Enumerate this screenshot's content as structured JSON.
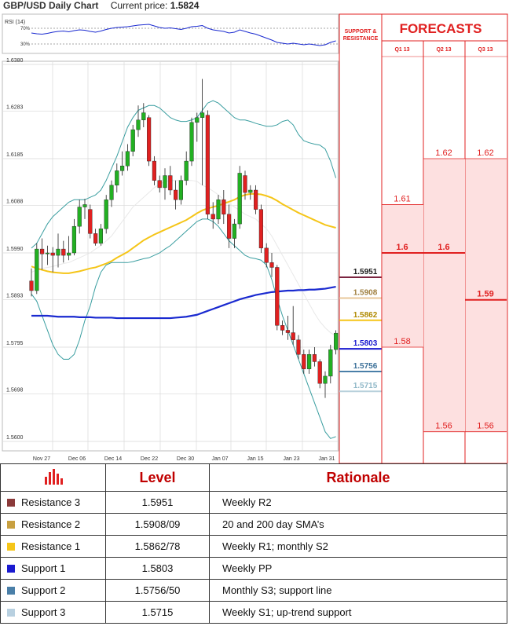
{
  "header": {
    "title": "GBP/USD Daily Chart",
    "price_label": "Current price:",
    "price_value": "1.5824"
  },
  "colors": {
    "red": "#e02020",
    "axis": "#888888"
  },
  "rsi": {
    "label": "RSI (14)",
    "level_high": "70%",
    "level_low": "30%"
  },
  "chart_data": {
    "type": "candlestick",
    "x_ticks": [
      "Nov 27",
      "Dec 06",
      "Dec 14",
      "Dec 22",
      "Dec 30",
      "Jan 07",
      "Jan 15",
      "Jan 23",
      "Jan 31"
    ],
    "y_ticks": [
      "1.6380",
      "1.6283",
      "1.6185",
      "1.6088",
      "1.5990",
      "1.5893",
      "1.5795",
      "1.5698",
      "1.5600"
    ],
    "ylim": [
      1.56,
      1.638
    ],
    "candles": [
      {
        "o": 1.5932,
        "h": 1.5958,
        "l": 1.59,
        "c": 1.5912
      },
      {
        "o": 1.5912,
        "h": 1.601,
        "l": 1.5905,
        "c": 1.5998
      },
      {
        "o": 1.5998,
        "h": 1.602,
        "l": 1.5955,
        "c": 1.5988
      },
      {
        "o": 1.5988,
        "h": 1.6005,
        "l": 1.5965,
        "c": 1.599
      },
      {
        "o": 1.599,
        "h": 1.6002,
        "l": 1.595,
        "c": 1.5985
      },
      {
        "o": 1.5985,
        "h": 1.603,
        "l": 1.596,
        "c": 1.5998
      },
      {
        "o": 1.5998,
        "h": 1.6015,
        "l": 1.597,
        "c": 1.5985
      },
      {
        "o": 1.5985,
        "h": 1.6025,
        "l": 1.5975,
        "c": 1.599
      },
      {
        "o": 1.599,
        "h": 1.606,
        "l": 1.5985,
        "c": 1.6045
      },
      {
        "o": 1.6045,
        "h": 1.61,
        "l": 1.603,
        "c": 1.6085
      },
      {
        "o": 1.6085,
        "h": 1.6102,
        "l": 1.606,
        "c": 1.609
      },
      {
        "o": 1.608,
        "h": 1.609,
        "l": 1.602,
        "c": 1.603
      },
      {
        "o": 1.603,
        "h": 1.604,
        "l": 1.6005,
        "c": 1.601
      },
      {
        "o": 1.601,
        "h": 1.605,
        "l": 1.6005,
        "c": 1.604
      },
      {
        "o": 1.604,
        "h": 1.611,
        "l": 1.603,
        "c": 1.61
      },
      {
        "o": 1.61,
        "h": 1.614,
        "l": 1.6085,
        "c": 1.613
      },
      {
        "o": 1.613,
        "h": 1.6175,
        "l": 1.6115,
        "c": 1.616
      },
      {
        "o": 1.616,
        "h": 1.62,
        "l": 1.615,
        "c": 1.617
      },
      {
        "o": 1.617,
        "h": 1.6215,
        "l": 1.616,
        "c": 1.62
      },
      {
        "o": 1.62,
        "h": 1.6255,
        "l": 1.619,
        "c": 1.6245
      },
      {
        "o": 1.6245,
        "h": 1.6295,
        "l": 1.623,
        "c": 1.6265
      },
      {
        "o": 1.6265,
        "h": 1.63,
        "l": 1.625,
        "c": 1.628
      },
      {
        "o": 1.627,
        "h": 1.6275,
        "l": 1.617,
        "c": 1.618
      },
      {
        "o": 1.618,
        "h": 1.619,
        "l": 1.613,
        "c": 1.614
      },
      {
        "o": 1.614,
        "h": 1.615,
        "l": 1.6115,
        "c": 1.6125
      },
      {
        "o": 1.6125,
        "h": 1.6165,
        "l": 1.61,
        "c": 1.615
      },
      {
        "o": 1.615,
        "h": 1.617,
        "l": 1.611,
        "c": 1.612
      },
      {
        "o": 1.612,
        "h": 1.614,
        "l": 1.608,
        "c": 1.61
      },
      {
        "o": 1.61,
        "h": 1.615,
        "l": 1.609,
        "c": 1.614
      },
      {
        "o": 1.614,
        "h": 1.62,
        "l": 1.613,
        "c": 1.618
      },
      {
        "o": 1.618,
        "h": 1.627,
        "l": 1.617,
        "c": 1.626
      },
      {
        "o": 1.626,
        "h": 1.628,
        "l": 1.622,
        "c": 1.627
      },
      {
        "o": 1.627,
        "h": 1.635,
        "l": 1.613,
        "c": 1.628
      },
      {
        "o": 1.6275,
        "h": 1.6285,
        "l": 1.606,
        "c": 1.607
      },
      {
        "o": 1.607,
        "h": 1.6095,
        "l": 1.604,
        "c": 1.606
      },
      {
        "o": 1.606,
        "h": 1.611,
        "l": 1.605,
        "c": 1.61
      },
      {
        "o": 1.61,
        "h": 1.612,
        "l": 1.605,
        "c": 1.607
      },
      {
        "o": 1.607,
        "h": 1.609,
        "l": 1.6,
        "c": 1.602
      },
      {
        "o": 1.602,
        "h": 1.606,
        "l": 1.6,
        "c": 1.605
      },
      {
        "o": 1.605,
        "h": 1.617,
        "l": 1.604,
        "c": 1.6155
      },
      {
        "o": 1.615,
        "h": 1.616,
        "l": 1.61,
        "c": 1.6115
      },
      {
        "o": 1.6115,
        "h": 1.613,
        "l": 1.61,
        "c": 1.612
      },
      {
        "o": 1.612,
        "h": 1.613,
        "l": 1.607,
        "c": 1.608
      },
      {
        "o": 1.608,
        "h": 1.609,
        "l": 1.599,
        "c": 1.6
      },
      {
        "o": 1.6,
        "h": 1.601,
        "l": 1.596,
        "c": 1.597
      },
      {
        "o": 1.597,
        "h": 1.599,
        "l": 1.594,
        "c": 1.596
      },
      {
        "o": 1.596,
        "h": 1.5965,
        "l": 1.583,
        "c": 1.584
      },
      {
        "o": 1.584,
        "h": 1.585,
        "l": 1.582,
        "c": 1.583
      },
      {
        "o": 1.583,
        "h": 1.586,
        "l": 1.581,
        "c": 1.5825
      },
      {
        "o": 1.5825,
        "h": 1.588,
        "l": 1.58,
        "c": 1.581
      },
      {
        "o": 1.581,
        "h": 1.582,
        "l": 1.577,
        "c": 1.578
      },
      {
        "o": 1.578,
        "h": 1.579,
        "l": 1.574,
        "c": 1.575
      },
      {
        "o": 1.575,
        "h": 1.579,
        "l": 1.574,
        "c": 1.578
      },
      {
        "o": 1.578,
        "h": 1.5795,
        "l": 1.5755,
        "c": 1.5765
      },
      {
        "o": 1.5765,
        "h": 1.577,
        "l": 1.571,
        "c": 1.572
      },
      {
        "o": 1.572,
        "h": 1.5745,
        "l": 1.569,
        "c": 1.5735
      },
      {
        "o": 1.5735,
        "h": 1.58,
        "l": 1.572,
        "c": 1.579
      },
      {
        "o": 1.579,
        "h": 1.583,
        "l": 1.578,
        "c": 1.5824
      }
    ],
    "sma20": [
      1.5962,
      1.5958,
      1.5955,
      1.5952,
      1.595,
      1.5949,
      1.5948,
      1.5948,
      1.595,
      1.5952,
      1.5955,
      1.5958,
      1.596,
      1.5964,
      1.5968,
      1.5973,
      1.598,
      1.5986,
      1.5992,
      1.6,
      1.6008,
      1.6016,
      1.6022,
      1.6028,
      1.6033,
      1.6038,
      1.6043,
      1.6048,
      1.6053,
      1.6058,
      1.6065,
      1.6072,
      1.6078,
      1.6082,
      1.6085,
      1.6088,
      1.6092,
      1.6096,
      1.61,
      1.6106,
      1.611,
      1.6112,
      1.6112,
      1.6111,
      1.6108,
      1.6104,
      1.6098,
      1.6091,
      1.6085,
      1.6079,
      1.6073,
      1.6068,
      1.6063,
      1.6058,
      1.6053,
      1.6048,
      1.6045,
      1.6042
    ],
    "sma200": [
      1.586,
      1.586,
      1.586,
      1.586,
      1.5859,
      1.5858,
      1.5858,
      1.5858,
      1.5858,
      1.5857,
      1.5857,
      1.5857,
      1.5856,
      1.5856,
      1.5856,
      1.5856,
      1.5855,
      1.5855,
      1.5855,
      1.5855,
      1.5855,
      1.5855,
      1.5855,
      1.5855,
      1.5855,
      1.5855,
      1.5855,
      1.5856,
      1.5857,
      1.5858,
      1.586,
      1.5862,
      1.5866,
      1.587,
      1.5874,
      1.5878,
      1.5882,
      1.5886,
      1.589,
      1.5894,
      1.5897,
      1.59,
      1.5903,
      1.5905,
      1.5907,
      1.5909,
      1.591,
      1.5911,
      1.5912,
      1.5912,
      1.5913,
      1.5913,
      1.5914,
      1.5914,
      1.5915,
      1.5916,
      1.5918,
      1.592
    ],
    "bb_upper": [
      1.6,
      1.601,
      1.603,
      1.605,
      1.6065,
      1.6075,
      1.6085,
      1.6095,
      1.61,
      1.61,
      1.61,
      1.6105,
      1.611,
      1.612,
      1.614,
      1.6165,
      1.619,
      1.622,
      1.625,
      1.627,
      1.6285,
      1.629,
      1.6295,
      1.6295,
      1.629,
      1.628,
      1.627,
      1.6265,
      1.6262,
      1.6262,
      1.6265,
      1.627,
      1.6285,
      1.63,
      1.6305,
      1.63,
      1.629,
      1.628,
      1.627,
      1.6265,
      1.6265,
      1.6262,
      1.6258,
      1.6255,
      1.6252,
      1.6252,
      1.6255,
      1.6262,
      1.6265,
      1.6255,
      1.6235,
      1.6222,
      1.6218,
      1.6215,
      1.6213,
      1.6205,
      1.618,
      1.6145
    ],
    "bb_lower": [
      1.5905,
      1.589,
      1.586,
      1.583,
      1.58,
      1.578,
      1.577,
      1.577,
      1.578,
      1.581,
      1.585,
      1.588,
      1.592,
      1.595,
      1.5965,
      1.597,
      1.597,
      1.597,
      1.597,
      1.5972,
      1.5975,
      1.5978,
      1.598,
      1.5985,
      1.599,
      1.5998,
      1.6005,
      1.6015,
      1.6025,
      1.6035,
      1.6045,
      1.6055,
      1.606,
      1.606,
      1.6055,
      1.6045,
      1.603,
      1.6015,
      1.6005,
      1.5995,
      1.5985,
      1.598,
      1.5978,
      1.5975,
      1.5965,
      1.5935,
      1.5895,
      1.586,
      1.583,
      1.58,
      1.577,
      1.574,
      1.571,
      1.568,
      1.565,
      1.562,
      1.5606,
      1.561
    ],
    "bb_mid": [
      1.595,
      1.5955,
      1.5958,
      1.596,
      1.5962,
      1.5965,
      1.5968,
      1.597,
      1.5975,
      1.598,
      1.5985,
      1.599,
      1.5998,
      1.6005,
      1.6015,
      1.6025,
      1.604,
      1.6055,
      1.607,
      1.6085,
      1.6095,
      1.6105,
      1.6115,
      1.6125,
      1.6132,
      1.6138,
      1.614,
      1.614,
      1.614,
      1.614,
      1.614,
      1.6138,
      1.613,
      1.6125,
      1.6118,
      1.611,
      1.61,
      1.6092,
      1.6085,
      1.6078,
      1.607,
      1.6065,
      1.606,
      1.605,
      1.604,
      1.6025,
      1.6005,
      1.5985,
      1.5965,
      1.5945,
      1.5925,
      1.5905,
      1.5885,
      1.5865,
      1.5848,
      1.5835,
      1.5825,
      1.5818
    ]
  },
  "rsi_data": [
    58,
    56,
    55,
    57,
    60,
    62,
    63,
    61,
    64,
    66,
    65,
    62,
    60,
    63,
    67,
    70,
    72,
    73,
    74,
    76,
    78,
    79,
    80,
    76,
    72,
    70,
    71,
    69,
    67,
    70,
    74,
    75,
    77,
    70,
    66,
    64,
    62,
    58,
    60,
    66,
    62,
    58,
    55,
    50,
    45,
    40,
    34,
    32,
    30,
    32,
    30,
    28,
    30,
    28,
    26,
    28,
    34,
    38
  ],
  "levels": [
    {
      "value": "1.5951",
      "color": "#7b2440",
      "text": "#1a1a1a",
      "bold": true
    },
    {
      "value": "1.5908",
      "color": "#e8c79a",
      "text": "#a08040",
      "bold": true
    },
    {
      "value": "1.5862",
      "color": "#f5c518",
      "text": "#b08a00",
      "bold": true
    },
    {
      "value": "1.5803",
      "color": "#1a1ad0",
      "text": "#1a1ad0",
      "bold": true
    },
    {
      "value": "1.5756",
      "color": "#4a7fa8",
      "text": "#3a6f98",
      "bold": true
    },
    {
      "value": "1.5715",
      "color": "#b8d0dc",
      "text": "#90b8c8",
      "bold": true
    }
  ],
  "level_prices": [
    1.5951,
    1.5908,
    1.5862,
    1.5803,
    1.5756,
    1.5715
  ],
  "sr_header": [
    "SUPPORT &",
    "RESISTANCE"
  ],
  "forecast_header": "FORECASTS",
  "forecast_cols": [
    "Q1 13",
    "Q2 13",
    "Q3 13"
  ],
  "forecast_values": {
    "q1": [
      {
        "label": "1.61",
        "price": 1.609,
        "heavy": false
      },
      {
        "label": "1.6",
        "price": 1.599,
        "heavy": true
      },
      {
        "label": "1.58",
        "price": 1.5795,
        "heavy": false
      }
    ],
    "q2": [
      {
        "label": "1.62",
        "price": 1.6185,
        "heavy": false
      },
      {
        "label": "1.6",
        "price": 1.599,
        "heavy": true
      },
      {
        "label": "1.56",
        "price": 1.562,
        "heavy": false
      }
    ],
    "q3": [
      {
        "label": "1.62",
        "price": 1.6185,
        "heavy": false
      },
      {
        "label": "1.59",
        "price": 1.5893,
        "heavy": true
      },
      {
        "label": "1.56",
        "price": 1.562,
        "heavy": false
      }
    ]
  },
  "table": {
    "headers": [
      "Level",
      "Rationale"
    ],
    "rows": [
      {
        "name": "Resistance 3",
        "color": "#8b3a3a",
        "level": "1.5951",
        "rationale": "Weekly R2"
      },
      {
        "name": "Resistance 2",
        "color": "#c8a040",
        "level": "1.5908/09",
        "rationale": "20 and 200 day SMA’s"
      },
      {
        "name": "Resistance 1",
        "color": "#f5c518",
        "level": "1.5862/78",
        "rationale": "Weekly R1; monthly S2"
      },
      {
        "name": "Support 1",
        "color": "#1a1ad0",
        "level": "1.5803",
        "rationale": "Weekly PP"
      },
      {
        "name": "Support 2",
        "color": "#4a7fa8",
        "level": "1.5756/50",
        "rationale": "Monthly S3; support line"
      },
      {
        "name": "Support 3",
        "color": "#b8d0e0",
        "level": "1.5715",
        "rationale": "Weekly S1; up-trend support"
      }
    ]
  }
}
